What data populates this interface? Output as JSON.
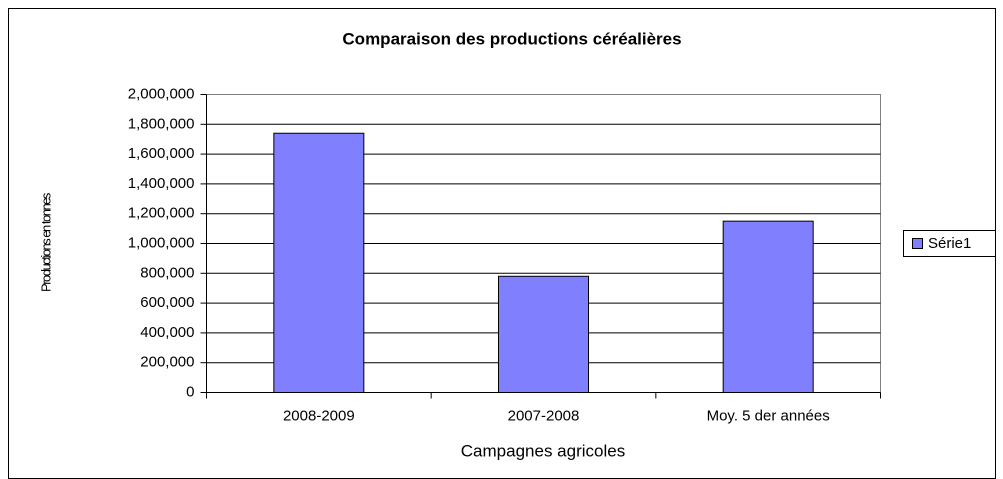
{
  "chart_data": {
    "type": "bar",
    "title": "Comparaison des productions céréalières",
    "x_label": "Campagnes agricoles",
    "y_label": "Productions en tonnes",
    "categories": [
      "2008-2009",
      "2007-2008",
      "Moy. 5 der années"
    ],
    "series": [
      {
        "name": "Série1",
        "color": "#8080ff",
        "values": [
          1740000,
          780000,
          1150000
        ]
      }
    ],
    "ylim": [
      0,
      2000000
    ],
    "yticks": [
      0,
      {
        "value": 200000,
        "label": "200,000"
      },
      {
        "value": 400000,
        "label": "400,000"
      },
      {
        "value": 600000,
        "label": "600,000"
      },
      {
        "value": 800000,
        "label": "800,000"
      },
      {
        "value": 1000000,
        "label": "1,000,000"
      },
      {
        "value": 1200000,
        "label": "1,200,000"
      },
      {
        "value": 1400000,
        "label": "1,400,000"
      },
      {
        "value": 1600000,
        "label": "1,600,000"
      },
      {
        "value": 1800000,
        "label": "1,800,000"
      },
      {
        "value": 2000000,
        "label": "2,000,000"
      }
    ],
    "grid": true,
    "legend": "right"
  }
}
